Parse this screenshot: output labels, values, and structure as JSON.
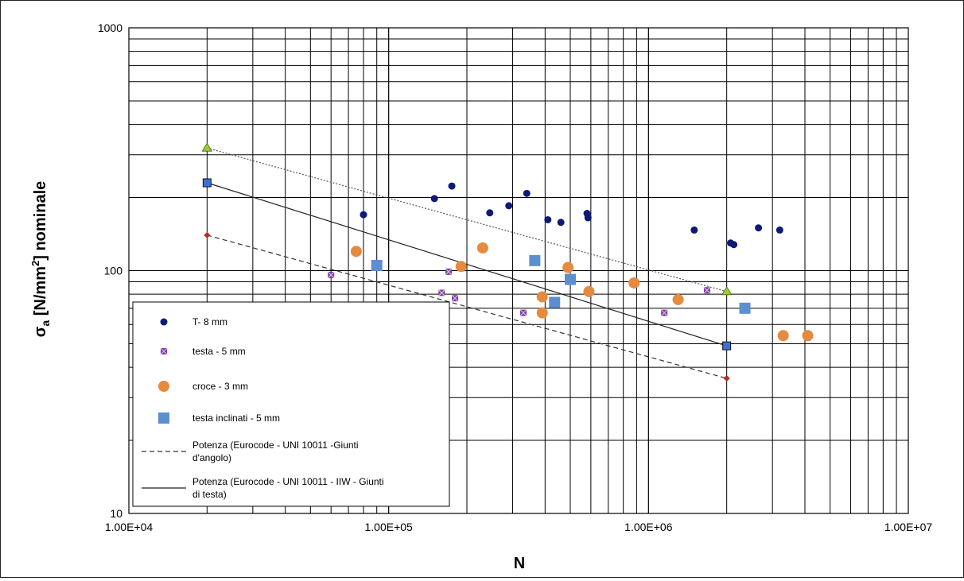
{
  "chart_data": {
    "type": "scatter",
    "xlabel": "N",
    "ylabel_main": "σ",
    "ylabel_sub": "a",
    "ylabel_rest": " [N/mm",
    "ylabel_sup": "2",
    "ylabel_end": "] nominale",
    "x_scale": "log",
    "y_scale": "log",
    "xlim": [
      10000,
      10000000
    ],
    "ylim": [
      10,
      1000
    ],
    "x_ticks": [
      {
        "value": 10000,
        "label": "1.00E+04"
      },
      {
        "value": 100000,
        "label": "1.00E+05"
      },
      {
        "value": 1000000,
        "label": "1.00E+06"
      },
      {
        "value": 10000000,
        "label": "1.00E+07"
      }
    ],
    "y_ticks": [
      {
        "value": 10,
        "label": "10"
      },
      {
        "value": 100,
        "label": "100"
      },
      {
        "value": 1000,
        "label": "1000"
      }
    ],
    "grid": true,
    "legend_position": "bottom-left inside plot",
    "series": [
      {
        "name": "T- 8 mm",
        "marker": "circle-small",
        "color": "#0d1a78",
        "points": [
          [
            80000,
            170
          ],
          [
            150000,
            198
          ],
          [
            175000,
            223
          ],
          [
            245000,
            173
          ],
          [
            290000,
            185
          ],
          [
            340000,
            208
          ],
          [
            410000,
            162
          ],
          [
            460000,
            158
          ],
          [
            580000,
            172
          ],
          [
            585000,
            165
          ],
          [
            1500000,
            147
          ],
          [
            2070000,
            130
          ],
          [
            2130000,
            128
          ],
          [
            2650000,
            150
          ],
          [
            3200000,
            147
          ]
        ]
      },
      {
        "name": "testa - 5 mm",
        "marker": "x-square",
        "color": "#7a3f9a",
        "points": [
          [
            60000,
            96
          ],
          [
            160000,
            81
          ],
          [
            170000,
            99
          ],
          [
            180000,
            77
          ],
          [
            330000,
            67
          ],
          [
            1150000,
            67
          ],
          [
            1680000,
            83
          ]
        ]
      },
      {
        "name": "croce - 3 mm",
        "marker": "circle-large",
        "color": "#e58a3f",
        "points": [
          [
            75000,
            120
          ],
          [
            190000,
            104
          ],
          [
            230000,
            124
          ],
          [
            390000,
            78
          ],
          [
            390000,
            67
          ],
          [
            490000,
            103
          ],
          [
            590000,
            82
          ],
          [
            880000,
            89
          ],
          [
            1300000,
            76
          ],
          [
            3300000,
            54
          ],
          [
            4100000,
            54
          ]
        ]
      },
      {
        "name": "testa inclinati - 5 mm",
        "marker": "square",
        "color": "#5b8fd0",
        "points": [
          [
            90000,
            105
          ],
          [
            365000,
            110
          ],
          [
            435000,
            74
          ],
          [
            500000,
            92
          ],
          [
            2350000,
            70
          ]
        ]
      }
    ],
    "lines": [
      {
        "name": "Potenza (Eurocode - UNI 10011 -Giunti d'angolo)",
        "style": "dashed",
        "color": "#333333",
        "points": [
          [
            20000,
            140
          ],
          [
            2000000,
            36
          ]
        ],
        "end_marker": "diamond",
        "marker_color": "#c0281e"
      },
      {
        "name": "Potenza (Eurocode - UNI 10011 - IIW - Giunti di testa)",
        "style": "solid",
        "color": "#222222",
        "points": [
          [
            20000,
            230
          ],
          [
            2000000,
            49
          ]
        ],
        "end_marker": "square",
        "marker_color": "#3a6fd8"
      },
      {
        "name": "",
        "style": "dotted",
        "color": "#555555",
        "points": [
          [
            20000,
            320
          ],
          [
            2000000,
            82
          ]
        ],
        "end_marker": "triangle",
        "marker_color": "#9acd32"
      }
    ],
    "legend_lines": [
      [
        "T- 8 mm"
      ],
      [
        "testa - 5 mm"
      ],
      [
        "croce - 3 mm"
      ],
      [
        "testa inclinati - 5 mm"
      ],
      [
        "Potenza (Eurocode - UNI 10011 -Giunti",
        "d'angolo)"
      ],
      [
        "Potenza (Eurocode - UNI 10011 - IIW - Giunti",
        "di testa)"
      ]
    ]
  }
}
